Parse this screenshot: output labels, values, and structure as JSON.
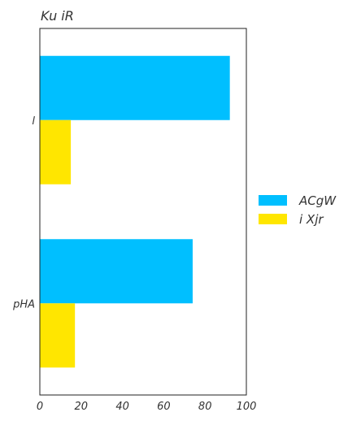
{
  "chart_data": {
    "type": "bar",
    "orientation": "horizontal",
    "title": "Ku  iR",
    "categories": [
      "l",
      "pHA"
    ],
    "series": [
      {
        "name": "ACgW",
        "color": "#00bfff",
        "values": [
          92,
          74
        ]
      },
      {
        "name": "i Xjr",
        "color": "#ffe600",
        "values": [
          15,
          17
        ]
      }
    ],
    "x_ticks": [
      0,
      20,
      40,
      60,
      80,
      100
    ],
    "xlim": [
      0,
      100
    ],
    "xlabel": "",
    "ylabel": "",
    "grid": false,
    "legend_position": "right"
  }
}
